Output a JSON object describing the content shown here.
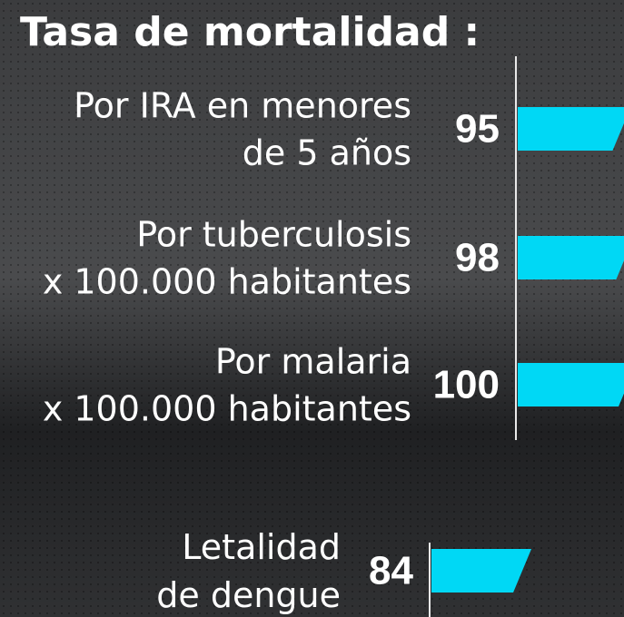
{
  "chart_data": [
    {
      "type": "bar",
      "title": "Tasa de mortalidad :",
      "categories": [
        [
          "Por IRA en menores",
          "de 5 años"
        ],
        [
          "Por tuberculosis",
          "x 100.000 habitantes"
        ],
        [
          "Por malaria",
          "x 100.000 habitantes"
        ]
      ],
      "values": [
        95,
        98,
        100
      ],
      "color": "#00d8f5"
    },
    {
      "type": "bar",
      "categories": [
        [
          "Letalidad",
          "de dengue"
        ]
      ],
      "values": [
        84
      ],
      "color": "#00d8f5"
    }
  ]
}
